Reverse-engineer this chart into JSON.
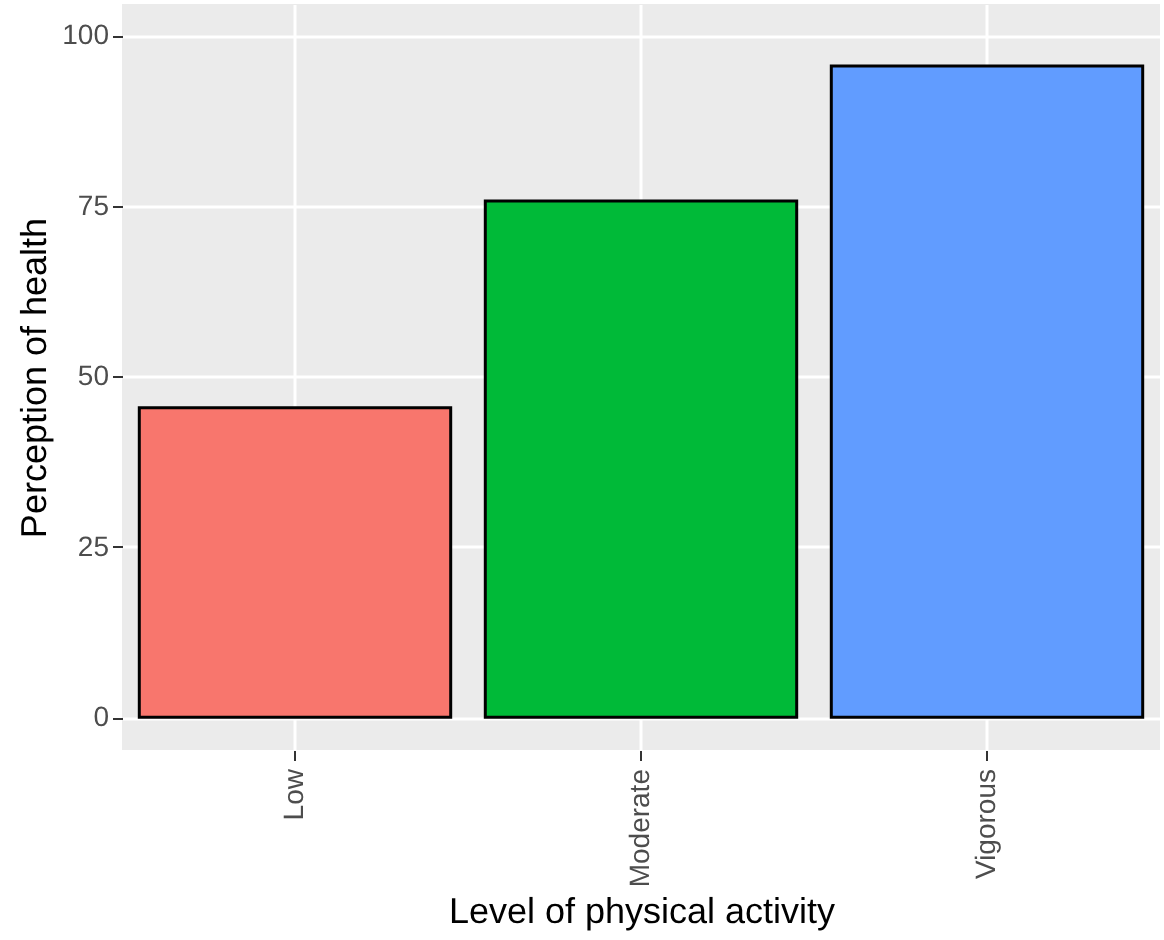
{
  "chart_data": {
    "type": "bar",
    "xlabel": "Level of physical activity",
    "ylabel": "Perception of health",
    "categories": [
      "Low",
      "Moderate",
      "Vigorous"
    ],
    "values": [
      45.4,
      75.7,
      95.5
    ],
    "colors": [
      "#f8766d",
      "#00ba38",
      "#619cff"
    ],
    "ylim": [
      -4.8,
      104.6
    ],
    "yticks": [
      0,
      25,
      50,
      75,
      100
    ],
    "grid": true,
    "legend": false
  }
}
